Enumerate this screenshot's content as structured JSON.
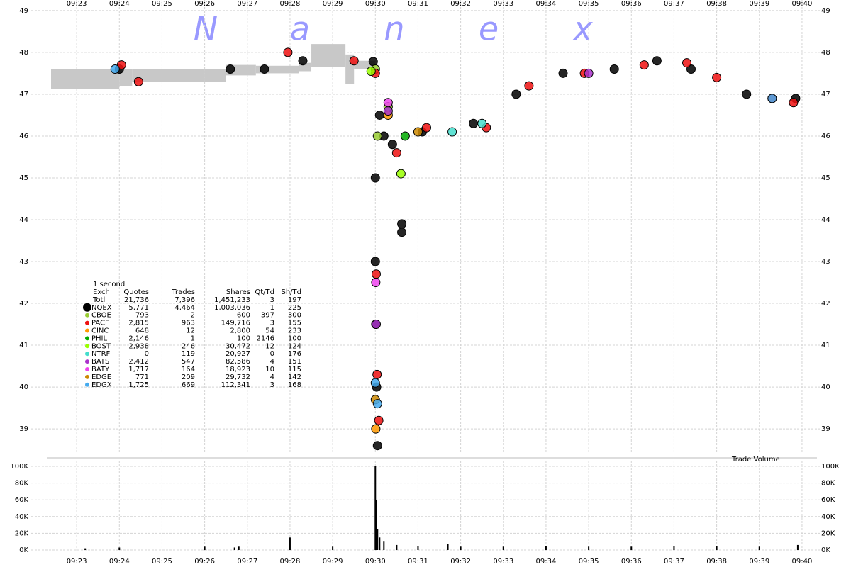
{
  "watermark": [
    "N",
    "a",
    "n",
    "e",
    "x"
  ],
  "legend_table": {
    "interval": "1 second",
    "columns": [
      "Exch",
      "Quotes",
      "Trades",
      "Shares",
      "Qt/Td",
      "Sh/Td"
    ],
    "total": [
      "Totl",
      "21,736",
      "7,396",
      "1,451,233",
      "3",
      "197"
    ],
    "rows": [
      [
        "5,771",
        "4,464",
        "1,003,036",
        "1",
        "225"
      ],
      [
        "793",
        "2",
        "600",
        "397",
        "300"
      ],
      [
        "2,815",
        "963",
        "149,716",
        "3",
        "155"
      ],
      [
        "648",
        "12",
        "2,800",
        "54",
        "233"
      ],
      [
        "2,146",
        "1",
        "100",
        "2146",
        "100"
      ],
      [
        "2,938",
        "246",
        "30,472",
        "12",
        "124"
      ],
      [
        "0",
        "119",
        "20,927",
        "0",
        "176"
      ],
      [
        "2,412",
        "547",
        "82,586",
        "4",
        "151"
      ],
      [
        "1,717",
        "164",
        "18,923",
        "10",
        "115"
      ],
      [
        "771",
        "209",
        "29,732",
        "4",
        "142"
      ],
      [
        "1,725",
        "669",
        "112,341",
        "3",
        "168"
      ]
    ]
  },
  "chart_data": [
    {
      "type": "scatter",
      "grid": true,
      "xlim": [
        562.3,
        580.35
      ],
      "xticks": [
        {
          "value": 563,
          "label": "09:23"
        },
        {
          "value": 564,
          "label": "09:24"
        },
        {
          "value": 565,
          "label": "09:25"
        },
        {
          "value": 566,
          "label": "09:26"
        },
        {
          "value": 567,
          "label": "09:27"
        },
        {
          "value": 568,
          "label": "09:28"
        },
        {
          "value": 569,
          "label": "09:29"
        },
        {
          "value": 570,
          "label": "09:30"
        },
        {
          "value": 571,
          "label": "09:31"
        },
        {
          "value": 572,
          "label": "09:32"
        },
        {
          "value": 573,
          "label": "09:33"
        },
        {
          "value": 574,
          "label": "09:34"
        },
        {
          "value": 575,
          "label": "09:35"
        },
        {
          "value": 576,
          "label": "09:36"
        },
        {
          "value": 577,
          "label": "09:37"
        },
        {
          "value": 578,
          "label": "09:38"
        },
        {
          "value": 579,
          "label": "09:39"
        },
        {
          "value": 580,
          "label": "09:40"
        }
      ],
      "ylim": [
        38.9,
        49.1
      ],
      "yticks": [
        39,
        40,
        41,
        42,
        43,
        44,
        45,
        46,
        47,
        48,
        49
      ],
      "quote_band": {
        "color": "#c8c8c8",
        "x": [
          562.4,
          564.0,
          564.3,
          566.0,
          566.5,
          567.2,
          568.2,
          568.5,
          569.3,
          569.5
        ],
        "bid": [
          47.13,
          47.2,
          47.3,
          47.3,
          47.45,
          47.5,
          47.55,
          47.65,
          47.25,
          47.6
        ],
        "ask": [
          47.6,
          47.6,
          47.6,
          47.6,
          47.7,
          47.68,
          47.75,
          48.2,
          47.95,
          47.8
        ]
      },
      "series": [
        {
          "name": "NQEX",
          "color": "#000000",
          "x": [
            564.0,
            566.6,
            567.4,
            568.3,
            569.95,
            570.0,
            570.0,
            570.01,
            570.03,
            570.05,
            570.1,
            570.2,
            570.4,
            570.62,
            570.62,
            571.1,
            572.3,
            573.3,
            574.4,
            575.6,
            576.6,
            577.4,
            578.7,
            579.85
          ],
          "values": [
            47.6,
            47.6,
            47.6,
            47.8,
            47.78,
            45.0,
            43.0,
            41.5,
            40.0,
            38.6,
            46.5,
            46.0,
            45.8,
            43.9,
            43.7,
            46.1,
            46.3,
            47.0,
            47.5,
            47.6,
            47.8,
            47.6,
            47.0,
            46.9
          ]
        },
        {
          "name": "CBOE",
          "color": "#99cc33",
          "x": [
            570.0,
            570.05,
            570.3
          ],
          "values": [
            47.6,
            46.0,
            46.7
          ]
        },
        {
          "name": "PACF",
          "color": "#ee1111",
          "x": [
            564.05,
            564.45,
            567.95,
            569.5,
            570.0,
            570.02,
            570.04,
            570.08,
            570.5,
            571.2,
            572.6,
            573.6,
            574.9,
            576.3,
            577.3,
            578.0,
            579.3,
            579.8
          ],
          "values": [
            47.7,
            47.3,
            48.0,
            47.8,
            47.5,
            42.7,
            40.3,
            39.2,
            45.6,
            46.2,
            46.2,
            47.2,
            47.5,
            47.7,
            47.75,
            47.4,
            46.9,
            46.8
          ]
        },
        {
          "name": "CINC",
          "color": "#ff9900",
          "x": [
            570.01,
            570.3
          ],
          "values": [
            39.0,
            46.5
          ]
        },
        {
          "name": "PHIL",
          "color": "#00aa00",
          "x": [
            570.7
          ],
          "values": [
            46.0
          ]
        },
        {
          "name": "BOST",
          "color": "#99ff00",
          "x": [
            569.9,
            570.6
          ],
          "values": [
            47.55,
            45.1
          ]
        },
        {
          "name": "NTRF",
          "color": "#44ddcc",
          "x": [
            571.8,
            572.5
          ],
          "values": [
            46.1,
            46.3
          ]
        },
        {
          "name": "BATS",
          "color": "#aa33cc",
          "x": [
            570.02,
            570.3,
            575.0
          ],
          "values": [
            41.5,
            46.6,
            47.5
          ]
        },
        {
          "name": "BATY",
          "color": "#ee44ee",
          "x": [
            570.01,
            570.3
          ],
          "values": [
            42.5,
            46.8
          ]
        },
        {
          "name": "EDGE",
          "color": "#cc8800",
          "x": [
            570.0,
            571.0
          ],
          "values": [
            39.7,
            46.1
          ]
        },
        {
          "name": "EDGX",
          "color": "#44aaee",
          "x": [
            563.9,
            570.0,
            570.05,
            579.3
          ],
          "values": [
            47.6,
            40.1,
            39.6,
            46.9
          ]
        }
      ]
    },
    {
      "type": "bar",
      "grid": true,
      "annotation": "Trade Volume",
      "color": "#000000",
      "xlim": [
        562.3,
        580.35
      ],
      "xticks": [
        {
          "value": 563,
          "label": "09:23"
        },
        {
          "value": 564,
          "label": "09:24"
        },
        {
          "value": 565,
          "label": "09:25"
        },
        {
          "value": 566,
          "label": "09:26"
        },
        {
          "value": 567,
          "label": "09:27"
        },
        {
          "value": 568,
          "label": "09:28"
        },
        {
          "value": 569,
          "label": "09:29"
        },
        {
          "value": 570,
          "label": "09:30"
        },
        {
          "value": 571,
          "label": "09:31"
        },
        {
          "value": 572,
          "label": "09:32"
        },
        {
          "value": 573,
          "label": "09:33"
        },
        {
          "value": 574,
          "label": "09:34"
        },
        {
          "value": 575,
          "label": "09:35"
        },
        {
          "value": 576,
          "label": "09:36"
        },
        {
          "value": 577,
          "label": "09:37"
        },
        {
          "value": 578,
          "label": "09:38"
        },
        {
          "value": 579,
          "label": "09:39"
        },
        {
          "value": 580,
          "label": "09:40"
        }
      ],
      "ylim": [
        0,
        100000
      ],
      "yticks": [
        {
          "value": 0,
          "label": "0K"
        },
        {
          "value": 20000,
          "label": "20K"
        },
        {
          "value": 40000,
          "label": "40K"
        },
        {
          "value": 60000,
          "label": "60K"
        },
        {
          "value": 80000,
          "label": "80K"
        },
        {
          "value": 100000,
          "label": "100K"
        }
      ],
      "x": [
        563.2,
        564.0,
        566.0,
        566.7,
        566.8,
        568.0,
        569.0,
        570.0,
        570.02,
        570.05,
        570.1,
        570.2,
        570.5,
        571.0,
        571.7,
        572.0,
        573.0,
        574.0,
        575.0,
        576.0,
        577.0,
        578.0,
        579.0,
        579.9
      ],
      "values": [
        2000,
        3000,
        4000,
        3000,
        4000,
        15000,
        4000,
        100000,
        60000,
        25000,
        15000,
        10000,
        6000,
        5000,
        7000,
        4000,
        4000,
        5000,
        4000,
        4000,
        5000,
        5000,
        4000,
        6000
      ]
    }
  ]
}
